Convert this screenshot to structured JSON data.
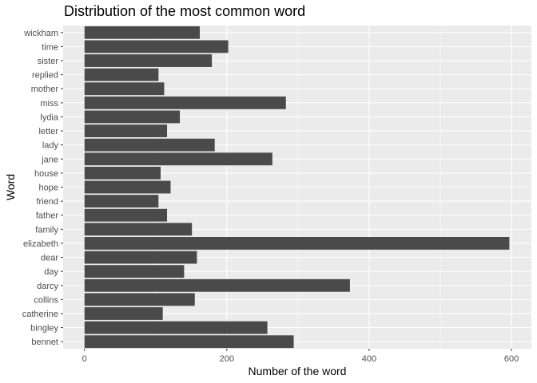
{
  "chart_data": {
    "type": "bar",
    "orientation": "horizontal",
    "title": "Distribution of the most common word",
    "xlabel": "Number of the word",
    "ylabel": "Word",
    "categories": [
      "bennet",
      "bingley",
      "catherine",
      "collins",
      "darcy",
      "day",
      "dear",
      "elizabeth",
      "family",
      "father",
      "friend",
      "hope",
      "house",
      "jane",
      "lady",
      "letter",
      "lydia",
      "miss",
      "mother",
      "replied",
      "sister",
      "time",
      "wickham"
    ],
    "values": [
      294,
      257,
      110,
      155,
      373,
      140,
      158,
      597,
      151,
      116,
      104,
      121,
      107,
      264,
      183,
      116,
      134,
      283,
      112,
      104,
      179,
      202,
      162
    ],
    "xlim": [
      -30,
      628
    ],
    "xticks": [
      0,
      200,
      400,
      600
    ],
    "xtick_labels": [
      "0",
      "200",
      "400",
      "600"
    ],
    "grid": true,
    "panel_color": "#ebebeb",
    "bar_color": "#4a4a4a",
    "grid_color": "#ffffff"
  }
}
